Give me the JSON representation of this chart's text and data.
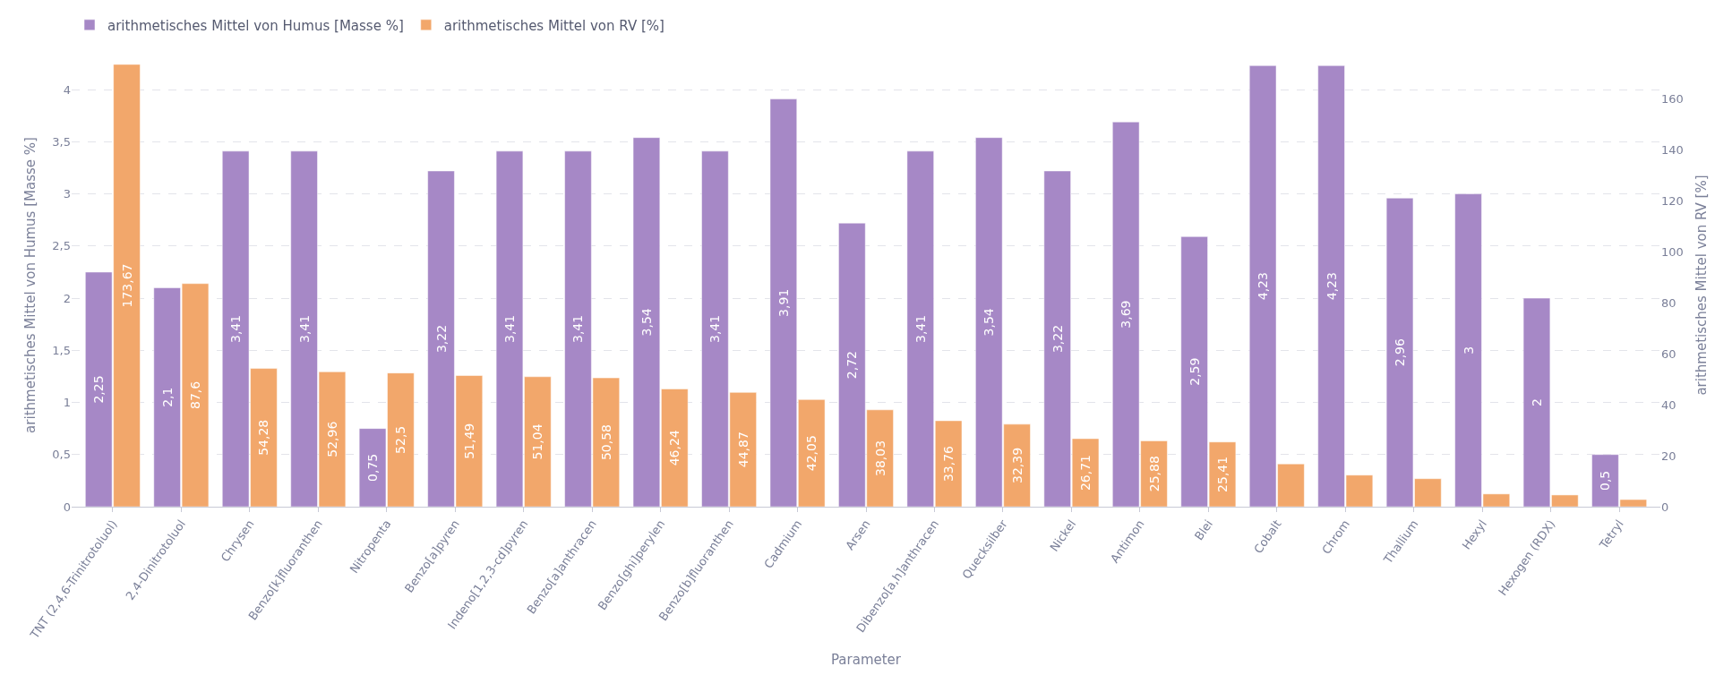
{
  "chart_data": {
    "type": "bar",
    "xlabel": "Parameter",
    "ylabel": "arithmetisches Mittel von Humus [Masse %]",
    "y2label": "arithmetisches Mittel von RV [%]",
    "categories": [
      "TNT (2,4,6-Trinitrotoluol)",
      "2,4-Dinitrotoluol",
      "Chrysen",
      "Benzo[k]fluoranthen",
      "Nitropenta",
      "Benzo[a]pyren",
      "Indeno[1,2,3-cd]pyren",
      "Benzo[a]anthracen",
      "Benzo[ghi]perylen",
      "Benzo[b]fluoranthen",
      "Cadmium",
      "Arsen",
      "Dibenzo[a,h]anthracen",
      "Quecksilber",
      "Nickel",
      "Antimon",
      "Blei",
      "Cobalt",
      "Chrom",
      "Thallium",
      "Hexyl",
      "Hexogen (RDX)",
      "Tetryl"
    ],
    "series": [
      {
        "name": "arithmetisches Mittel von Humus [Masse %]",
        "color": "#a688c6",
        "values": [
          2.25,
          2.1,
          3.41,
          3.41,
          0.75,
          3.22,
          3.41,
          3.41,
          3.54,
          3.41,
          3.91,
          2.72,
          3.41,
          3.54,
          3.22,
          3.69,
          2.59,
          4.23,
          4.23,
          2.96,
          3,
          2,
          0.5
        ],
        "value_labels": [
          "2,25",
          "2,1",
          "3,41",
          "3,41",
          "0,75",
          "3,22",
          "3,41",
          "3,41",
          "3,54",
          "3,41",
          "3,91",
          "2,72",
          "3,41",
          "3,54",
          "3,22",
          "3,69",
          "2,59",
          "4,23",
          "4,23",
          "2,96",
          "3",
          "2",
          "0,5"
        ]
      },
      {
        "name": "arithmetisches Mittel von RV [%]",
        "color": "#f2a76b",
        "axis": "y2",
        "values": [
          173.67,
          87.6,
          54.28,
          52.96,
          52.5,
          51.49,
          51.04,
          50.58,
          46.24,
          44.87,
          42.05,
          38.03,
          33.76,
          32.39,
          26.71,
          25.88,
          25.41,
          16.8,
          12.4,
          11.0,
          5.0,
          4.6,
          2.8
        ],
        "value_labels": [
          "173,67",
          "87,6",
          "54,28",
          "52,96",
          "52,5",
          "51,49",
          "51,04",
          "50,58",
          "46,24",
          "44,87",
          "42,05",
          "38,03",
          "33,76",
          "32,39",
          "26,71",
          "25,88",
          "25,41",
          null,
          null,
          null,
          null,
          null,
          null
        ]
      }
    ],
    "ylim": [
      0,
      4.25
    ],
    "yticks": [
      0,
      {
        "value": 0.5,
        "label": "0,5"
      },
      1,
      {
        "value": 1.5,
        "label": "1,5"
      },
      2,
      {
        "value": 2.5,
        "label": "2,5"
      },
      3,
      {
        "value": 3.5,
        "label": "3,5"
      },
      4
    ],
    "y2lim": [
      0,
      174
    ],
    "y2ticks": [
      0,
      20,
      40,
      60,
      80,
      100,
      120,
      140,
      160
    ],
    "grid": "y",
    "legend": "top left"
  }
}
